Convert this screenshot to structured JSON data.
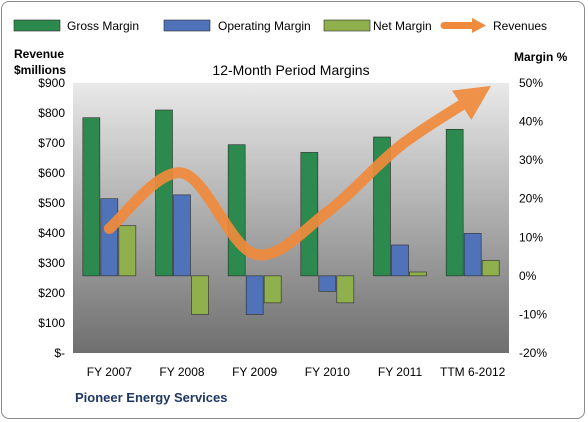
{
  "chart_data": {
    "type": "bar",
    "title": "12-Month Period Margins",
    "categories": [
      "FY 2007",
      "FY 2008",
      "FY 2009",
      "FY 2010",
      "FY 2011",
      "TTM 6-2012"
    ],
    "series": [
      {
        "name": "Gross Margin",
        "kind": "bar",
        "axis": "right",
        "color": "#2d8a4e",
        "values": [
          41,
          43,
          34,
          32,
          36,
          38
        ]
      },
      {
        "name": "Operating Margin",
        "kind": "bar",
        "axis": "right",
        "color": "#4f72b8",
        "values": [
          20,
          21,
          -10,
          -4,
          8,
          11
        ]
      },
      {
        "name": "Net Margin",
        "kind": "bar",
        "axis": "right",
        "color": "#8fb04c",
        "values": [
          13,
          -10,
          -7,
          -7,
          1,
          4
        ]
      },
      {
        "name": "Revenues",
        "kind": "line",
        "axis": "left",
        "color": "#f08a3c",
        "values": [
          415,
          600,
          330,
          470,
          690,
          850
        ]
      }
    ],
    "left_axis": {
      "label_line1": "Revenue",
      "label_line2": "$millions",
      "range": [
        0,
        900
      ],
      "ticks": [
        "$-",
        "$100",
        "$200",
        "$300",
        "$400",
        "$500",
        "$600",
        "$700",
        "$800",
        "$900"
      ]
    },
    "right_axis": {
      "label": "Margin %",
      "range": [
        -20,
        50
      ],
      "ticks": [
        "-20%",
        "-10%",
        "0%",
        "10%",
        "20%",
        "30%",
        "40%",
        "50%"
      ]
    },
    "legend_position": "top",
    "grid": false,
    "company": "Pioneer Energy Services"
  }
}
